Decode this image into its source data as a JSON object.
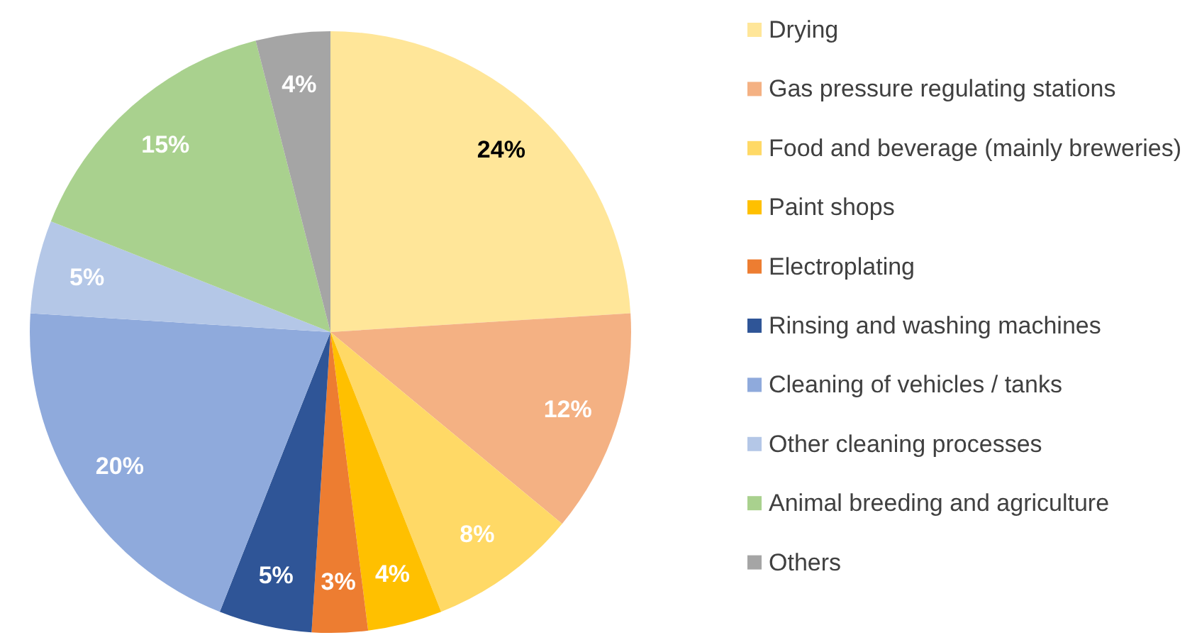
{
  "chart_data": {
    "type": "pie",
    "categories": [
      "Drying",
      "Gas pressure regulating stations",
      "Food and beverage (mainly breweries)",
      "Paint shops",
      "Electroplating",
      "Rinsing and washing machines",
      "Cleaning of vehicles / tanks",
      "Other cleaning processes",
      "Animal breeding and agriculture",
      "Others"
    ],
    "values": [
      24,
      12,
      8,
      4,
      3,
      5,
      20,
      5,
      15,
      4
    ],
    "value_labels": [
      "24%",
      "12%",
      "8%",
      "4%",
      "3%",
      "5%",
      "20%",
      "5%",
      "15%",
      "4%"
    ],
    "colors": [
      "#ffe699",
      "#f4b183",
      "#ffd966",
      "#ffc000",
      "#ed7d31",
      "#2f5597",
      "#8faadc",
      "#b4c7e7",
      "#a9d18e",
      "#a5a5a5"
    ],
    "legend": "right"
  }
}
